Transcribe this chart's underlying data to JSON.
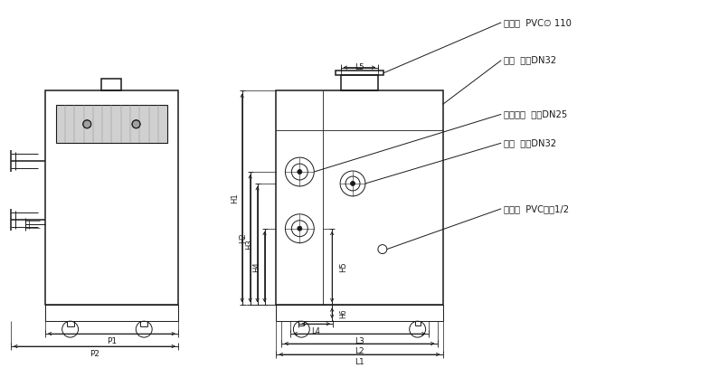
{
  "bg_color": "#ffffff",
  "line_color": "#1a1a1a",
  "annotations": {
    "paiyank": "排烟口  PVC∅ 110",
    "chushui": "出水  法兰DN32",
    "ranqi": "燃气进口  法兰DN25",
    "jinshui": "进水  法兰DN32",
    "paishui": "排水口  PVC软管1/2"
  }
}
